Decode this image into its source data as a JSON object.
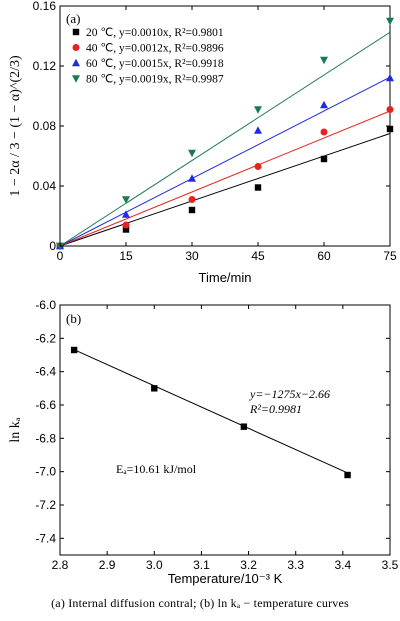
{
  "chart_data": [
    {
      "type": "scatter",
      "panel_label": "(a)",
      "xlabel": "Time/min",
      "ylabel": "1 − 2α / 3 − (1 − α)^(2/3)",
      "xlim": [
        0,
        75
      ],
      "ylim": [
        0,
        0.16
      ],
      "xticks": [
        "0",
        "15",
        "30",
        "45",
        "60",
        "75"
      ],
      "yticks": [
        "0",
        "0.04",
        "0.08",
        "0.12",
        "0.16"
      ],
      "legend_position": "top-left",
      "series": [
        {
          "name": "20 ℃, y=0.0010x, R²=0.9801",
          "color": "#000000",
          "marker": "square",
          "x": [
            0,
            15,
            30,
            45,
            60,
            75
          ],
          "y": [
            0.0,
            0.011,
            0.024,
            0.039,
            0.058,
            0.078
          ],
          "fit_slope": 0.001
        },
        {
          "name": "40 ℃, y=0.0012x, R²=0.9896",
          "color": "#e8231f",
          "marker": "circle",
          "x": [
            0,
            15,
            30,
            45,
            60,
            75
          ],
          "y": [
            0.0,
            0.014,
            0.031,
            0.053,
            0.076,
            0.091
          ],
          "fit_slope": 0.0012
        },
        {
          "name": "60 ℃, y=0.0015x, R²=0.9918",
          "color": "#1f2be0",
          "marker": "triangle-up",
          "x": [
            0,
            15,
            30,
            45,
            60,
            75
          ],
          "y": [
            0.0,
            0.021,
            0.045,
            0.077,
            0.094,
            0.112
          ],
          "fit_slope": 0.0015
        },
        {
          "name": "80 ℃, y=0.0019x, R²=0.9987",
          "color": "#1a7a50",
          "marker": "triangle-down",
          "x": [
            0,
            15,
            30,
            45,
            60,
            75
          ],
          "y": [
            0.0,
            0.031,
            0.062,
            0.091,
            0.124,
            0.15
          ],
          "fit_slope": 0.0019
        }
      ]
    },
    {
      "type": "scatter",
      "panel_label": "(b)",
      "xlabel": "Temperature/10⁻³ K",
      "ylabel": "ln kₐ",
      "xlim": [
        2.8,
        3.5
      ],
      "ylim": [
        -7.5,
        -6.0
      ],
      "xticks": [
        "2.8",
        "2.9",
        "3.0",
        "3.1",
        "3.2",
        "3.3",
        "3.4",
        "3.5"
      ],
      "yticks": [
        "-6.0",
        "-6.2",
        "-6.4",
        "-6.6",
        "-6.8",
        "-7.0",
        "-7.2",
        "-7.4"
      ],
      "series": [
        {
          "name": "ln ka",
          "color": "#000000",
          "marker": "square",
          "x": [
            2.83,
            3.0,
            3.19,
            3.41
          ],
          "y": [
            -6.27,
            -6.5,
            -6.73,
            -7.02
          ]
        }
      ],
      "fit": {
        "slope": -1.275,
        "intercept": -2.66,
        "x_range": [
          2.83,
          3.41
        ]
      },
      "annotations": {
        "equation": "y=−1275x−2.66",
        "r2": "R²=0.9981",
        "ea": "Eₐ=10.61 kJ/mol"
      }
    }
  ],
  "caption": {
    "text": "(a)  Internal  diffusion  contral;  (b)  ln kₐ − temperature curves"
  }
}
